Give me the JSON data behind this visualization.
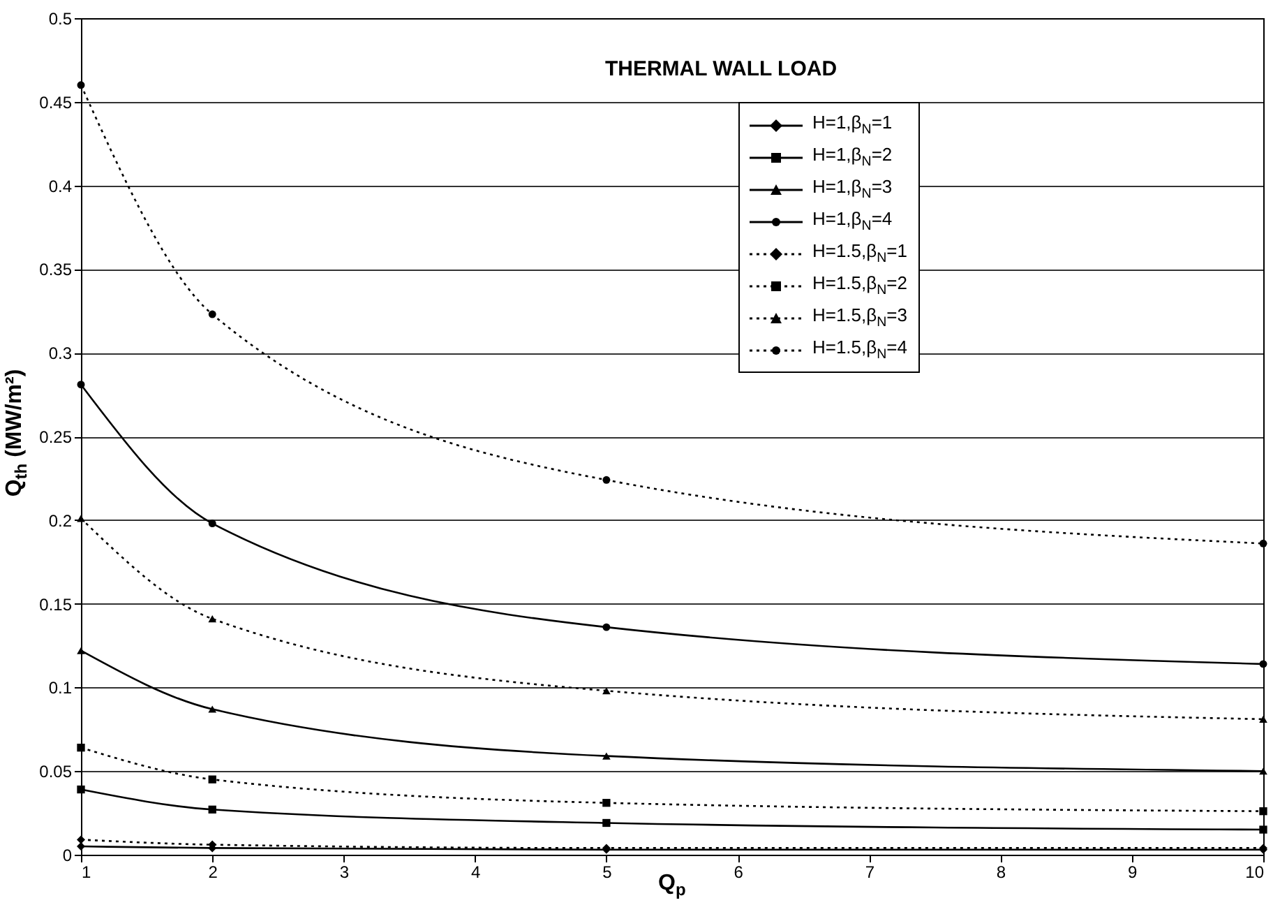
{
  "chart_data": {
    "type": "line",
    "title": "THERMAL WALL LOAD",
    "xlabel": "Q$_{p}$",
    "ylabel": "Q$_{th}$ (MW/m²)",
    "x": [
      1,
      2,
      5,
      10
    ],
    "xlim": [
      1,
      10
    ],
    "xticks": [
      1,
      2,
      3,
      4,
      5,
      6,
      7,
      8,
      9,
      10
    ],
    "ylim": [
      0,
      0.5
    ],
    "yticks": [
      0,
      0.05,
      0.1,
      0.15,
      0.2,
      0.25,
      0.3,
      0.35,
      0.4,
      0.45,
      0.5
    ],
    "grid": "y",
    "legend": "top right",
    "series": [
      {
        "name": "H=1,β$_{N}$=1",
        "color": "#000000",
        "marker": "diamond",
        "line_style": "solid",
        "values": [
          0.005,
          0.004,
          0.003,
          0.003
        ]
      },
      {
        "name": "H=1,β$_{N}$=2",
        "color": "#000000",
        "marker": "square",
        "line_style": "solid",
        "values": [
          0.039,
          0.027,
          0.019,
          0.015
        ]
      },
      {
        "name": "H=1,β$_{N}$=3",
        "color": "#000000",
        "marker": "triangle",
        "line_style": "solid",
        "values": [
          0.122,
          0.087,
          0.059,
          0.05
        ]
      },
      {
        "name": "H=1,β$_{N}$=4",
        "color": "#000000",
        "marker": "circle",
        "line_style": "solid",
        "values": [
          0.281,
          0.198,
          0.136,
          0.114
        ]
      },
      {
        "name": "H=1.5,β$_{N}$=1",
        "color": "#000000",
        "marker": "diamond",
        "line_style": "dotted",
        "values": [
          0.009,
          0.006,
          0.004,
          0.004
        ]
      },
      {
        "name": "H=1.5,β$_{N}$=2",
        "color": "#000000",
        "marker": "square",
        "line_style": "dotted",
        "values": [
          0.064,
          0.045,
          0.031,
          0.026
        ]
      },
      {
        "name": "H=1.5,β$_{N}$=3",
        "color": "#000000",
        "marker": "triangle",
        "line_style": "dotted",
        "values": [
          0.201,
          0.141,
          0.098,
          0.081
        ]
      },
      {
        "name": "H=1.5,β$_{N}$=4",
        "color": "#000000",
        "marker": "circle",
        "line_style": "dotted",
        "values": [
          0.46,
          0.323,
          0.224,
          0.186
        ]
      }
    ]
  }
}
